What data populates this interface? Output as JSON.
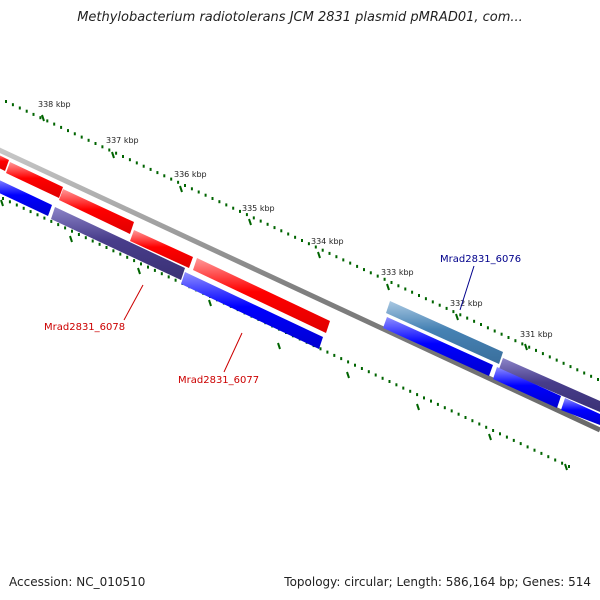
{
  "title": "Methylobacterium radiotolerans JCM 2831 plasmid pMRAD01, com...",
  "accession_text": "Accession: NC_010510",
  "summary_text": "Topology: circular; Length: 586,164 bp; Genes: 514",
  "ticks": [
    {
      "label": "338 kbp"
    },
    {
      "label": "337 kbp"
    },
    {
      "label": "336 kbp"
    },
    {
      "label": "335 kbp"
    },
    {
      "label": "334 kbp"
    },
    {
      "label": "333 kbp"
    },
    {
      "label": "332 kbp"
    },
    {
      "label": "331 kbp"
    }
  ],
  "gene_labels": [
    {
      "name": "Mrad2831_6076",
      "color": "#00008b"
    },
    {
      "name": "Mrad2831_6078",
      "color": "#cc0000"
    },
    {
      "name": "Mrad2831_6077",
      "color": "#cc0000"
    }
  ],
  "colors": {
    "forward_cds": "#ff0000",
    "reverse_cds": "#0000ff",
    "reverse_cds_dark": "#483d8b",
    "reverse_cds_light": "#4682b4",
    "backbone": "#808080",
    "ticks": "#006400"
  }
}
